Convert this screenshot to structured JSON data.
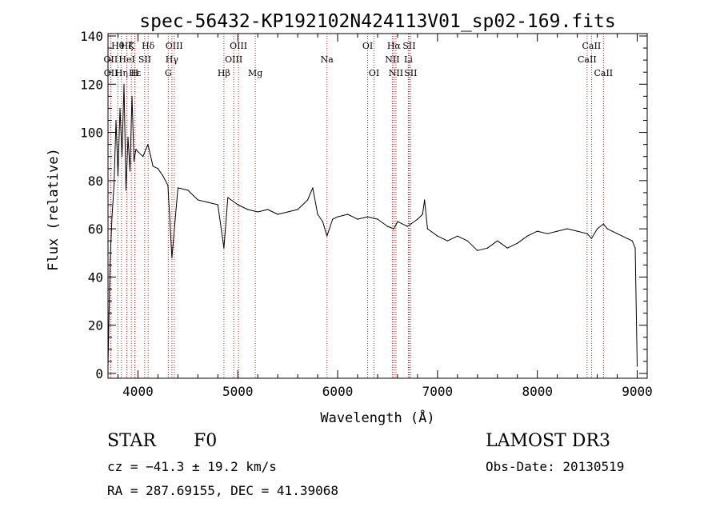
{
  "chart_data": {
    "type": "line",
    "title": "spec-56432-KP192102N424113V01_sp02-169.fits",
    "xlabel": "Wavelength (Å)",
    "ylabel": "Flux (relative)",
    "xlim": [
      3700,
      9100
    ],
    "ylim": [
      -2,
      141
    ],
    "xticks": [
      4000,
      5000,
      6000,
      7000,
      8000,
      9000
    ],
    "yticks": [
      0,
      20,
      40,
      60,
      80,
      100,
      120,
      140
    ],
    "grid": false,
    "line_color": "#000000",
    "marker_color": "#b22222",
    "series": [
      {
        "name": "flux",
        "x": [
          3700,
          3720,
          3740,
          3760,
          3780,
          3800,
          3820,
          3840,
          3860,
          3880,
          3900,
          3920,
          3940,
          3960,
          3980,
          4000,
          4050,
          4100,
          4150,
          4200,
          4250,
          4300,
          4340,
          4400,
          4500,
          4600,
          4700,
          4800,
          4861,
          4900,
          5000,
          5100,
          5200,
          5300,
          5400,
          5500,
          5600,
          5650,
          5700,
          5750,
          5800,
          5850,
          5893,
          5950,
          6000,
          6100,
          6200,
          6300,
          6400,
          6500,
          6563,
          6600,
          6700,
          6800,
          6850,
          6870,
          6900,
          7000,
          7100,
          7200,
          7300,
          7400,
          7500,
          7600,
          7700,
          7800,
          7900,
          8000,
          8100,
          8200,
          8300,
          8400,
          8500,
          8542,
          8600,
          8662,
          8700,
          8800,
          8900,
          8950,
          8980,
          9000
        ],
        "y": [
          3,
          45,
          65,
          78,
          105,
          82,
          110,
          90,
          120,
          76,
          98,
          84,
          115,
          88,
          93,
          92,
          90,
          95,
          86,
          85,
          82,
          78,
          48,
          77,
          76,
          72,
          71,
          70,
          52,
          73,
          70,
          68,
          67,
          68,
          66,
          67,
          68,
          70,
          72,
          77,
          66,
          63,
          57,
          64,
          65,
          66,
          64,
          65,
          64,
          61,
          60,
          63,
          61,
          64,
          66,
          72,
          60,
          57,
          55,
          57,
          55,
          51,
          52,
          55,
          52,
          54,
          57,
          59,
          58,
          59,
          60,
          59,
          58,
          56,
          60,
          62,
          60,
          58,
          56,
          55,
          52,
          3
        ]
      }
    ],
    "line_markers": [
      {
        "label": "OII",
        "x": 3727,
        "row": 2
      },
      {
        "label": "OII",
        "x": 3729,
        "row": 3
      },
      {
        "label": "Hθ",
        "x": 3798,
        "row": 1
      },
      {
        "label": "Hη",
        "x": 3835,
        "row": 3
      },
      {
        "label": "HeI",
        "x": 3889,
        "row": 2
      },
      {
        "label": "Hζ",
        "x": 3889,
        "row": 1
      },
      {
        "label": "K",
        "x": 3934,
        "row": 1
      },
      {
        "label": "SII",
        "x": 4068,
        "row": 2
      },
      {
        "label": "H",
        "x": 3968,
        "row": 3
      },
      {
        "label": "Hε",
        "x": 3970,
        "row": 3
      },
      {
        "label": "Hδ",
        "x": 4102,
        "row": 1
      },
      {
        "label": "OIII",
        "x": 4363,
        "row": 1
      },
      {
        "label": "Hγ",
        "x": 4340,
        "row": 2
      },
      {
        "label": "G",
        "x": 4304,
        "row": 3
      },
      {
        "label": "Hβ",
        "x": 4861,
        "row": 3
      },
      {
        "label": "OIII",
        "x": 5007,
        "row": 1
      },
      {
        "label": "OIII",
        "x": 4959,
        "row": 2
      },
      {
        "label": "Mg",
        "x": 5175,
        "row": 3
      },
      {
        "label": "Na",
        "x": 5893,
        "row": 2
      },
      {
        "label": "OI",
        "x": 6300,
        "row": 1
      },
      {
        "label": "OI",
        "x": 6364,
        "row": 3
      },
      {
        "label": "Hα",
        "x": 6563,
        "row": 1
      },
      {
        "label": "NII",
        "x": 6548,
        "row": 2
      },
      {
        "label": "NII",
        "x": 6584,
        "row": 3
      },
      {
        "label": "SII",
        "x": 6716,
        "row": 1
      },
      {
        "label": "SII",
        "x": 6731,
        "row": 3
      },
      {
        "label": "Li",
        "x": 6708,
        "row": 2
      },
      {
        "label": "CaII",
        "x": 8542,
        "row": 1
      },
      {
        "label": "CaII",
        "x": 8498,
        "row": 2
      },
      {
        "label": "CaII",
        "x": 8662,
        "row": 3
      }
    ]
  },
  "info": {
    "object_class": "STAR",
    "subclass": "F0",
    "survey": "LAMOST DR3",
    "redshift": "cz = −41.3 ± 19.2 km/s",
    "obs_date": "Obs-Date: 20130519",
    "coords": "RA = 287.69155, DEC =  41.39068"
  }
}
